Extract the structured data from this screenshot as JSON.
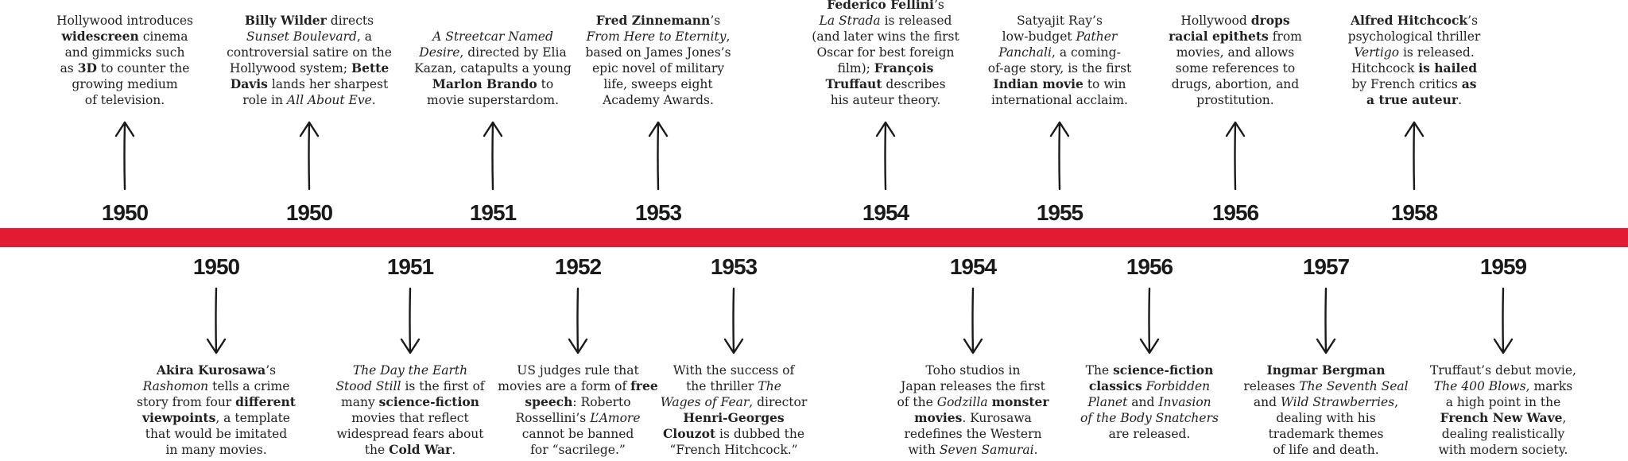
{
  "top_events": [
    {
      "year": "1950",
      "lines": [
        "Hollywood introduces",
        [
          {
            "b": "widescreen"
          },
          " cinema"
        ],
        "and gimmicks such",
        [
          "as ",
          {
            "b": "3D"
          },
          " to counter the"
        ],
        "growing medium",
        "of television."
      ]
    },
    {
      "year": "1950",
      "lines": [
        [
          {
            "b": "Billy Wilder"
          },
          " directs"
        ],
        [
          {
            "i": "Sunset Boulevard"
          },
          ", a"
        ],
        "controversial satire on the",
        [
          "Hollywood system; ",
          {
            "b": "Bette"
          }
        ],
        [
          {
            "b": "Davis"
          },
          " lands her sharpest"
        ],
        [
          "role in ",
          {
            "i": "All About Eve"
          },
          "."
        ]
      ]
    },
    {
      "year": "1951",
      "lines": [
        [
          {
            "i": "A Streetcar Named"
          }
        ],
        [
          {
            "i": "Desire"
          },
          ", directed by Elia"
        ],
        "Kazan, catapults a young",
        [
          {
            "b": "Marlon Brando"
          },
          " to"
        ],
        "movie superstardom."
      ]
    },
    {
      "year": "1953",
      "lines": [
        [
          {
            "b": "Fred Zinnemann"
          },
          "’s"
        ],
        [
          {
            "i": "From Here to Eternity"
          },
          ","
        ],
        "based on James Jones’s",
        "epic novel of military",
        "life, sweeps eight",
        "Academy Awards."
      ]
    },
    {
      "year": "1954",
      "lines": [
        [
          {
            "b": "Federico Fellini"
          },
          "’s"
        ],
        [
          {
            "i": "La Strada"
          },
          " is released"
        ],
        "(and later wins the first",
        "Oscar for best foreign",
        [
          "film); ",
          {
            "b": "François"
          }
        ],
        [
          {
            "b": "Truffaut"
          },
          " describes"
        ],
        "his auteur theory."
      ]
    },
    {
      "year": "1955",
      "lines": [
        "Satyajit Ray’s",
        [
          "low-budget ",
          {
            "i": "Pather"
          }
        ],
        [
          {
            "i": "Panchali"
          },
          ", a coming-"
        ],
        "of-age story, is the first",
        [
          {
            "b": "Indian movie"
          },
          " to win"
        ],
        "international acclaim."
      ]
    },
    {
      "year": "1956",
      "lines": [
        [
          "Hollywood ",
          {
            "b": "drops"
          }
        ],
        [
          {
            "b": "racial epithets"
          },
          " from"
        ],
        "movies, and allows",
        "some references to",
        "drugs, abortion, and",
        "prostitution."
      ]
    },
    {
      "year": "1958",
      "lines": [
        [
          {
            "b": "Alfred Hitchcock"
          },
          "’s"
        ],
        "psychological thriller",
        [
          {
            "i": "Vertigo"
          },
          " is released."
        ],
        [
          "Hitchcock ",
          {
            "b": "is hailed"
          }
        ],
        [
          "by French critics ",
          {
            "b": "as"
          }
        ],
        [
          {
            "b": "a true auteur"
          },
          "."
        ]
      ]
    }
  ],
  "bottom_events": [
    {
      "year": "1950",
      "lines": [
        [
          {
            "b": "Akira Kurosawa"
          },
          "’s"
        ],
        [
          {
            "i": "Rashomon"
          },
          " tells a crime"
        ],
        [
          "story from four ",
          {
            "b": "different"
          }
        ],
        [
          {
            "b": "viewpoints"
          },
          ", a template"
        ],
        "that would be imitated",
        "in many movies."
      ]
    },
    {
      "year": "1951",
      "lines": [
        [
          {
            "i": "The Day the Earth"
          }
        ],
        [
          {
            "i": "Stood Still"
          },
          " is the first of"
        ],
        [
          "many ",
          {
            "b": "science-fiction"
          }
        ],
        "movies that reflect",
        "widespread fears about",
        [
          "the ",
          {
            "b": "Cold War"
          },
          "."
        ]
      ]
    },
    {
      "year": "1952",
      "lines": [
        "US judges rule that",
        [
          "movies are a form of ",
          {
            "b": "free"
          }
        ],
        [
          {
            "b": "speech"
          },
          ": Roberto"
        ],
        [
          "Rossellini’s ",
          {
            "i": "L’Amore"
          }
        ],
        "cannot be banned",
        "for “sacrilege.”"
      ]
    },
    {
      "year": "1953",
      "lines": [
        "With the success of",
        [
          "the thriller ",
          {
            "i": "The"
          }
        ],
        [
          {
            "i": "Wages of Fear"
          },
          ", director"
        ],
        [
          {
            "b": "Henri-Georges"
          }
        ],
        [
          {
            "b": "Clouzot"
          },
          " is dubbed the"
        ],
        "“French Hitchcock.”"
      ]
    },
    {
      "year": "1954",
      "lines": [
        "Toho studios in",
        "Japan releases the first",
        [
          "of the ",
          {
            "i": "Godzilla"
          },
          " ",
          {
            "b": "monster"
          }
        ],
        [
          {
            "b": "movies"
          },
          ". Kurosawa"
        ],
        "redefines the Western",
        [
          "with ",
          {
            "i": "Seven Samurai"
          },
          "."
        ]
      ]
    },
    {
      "year": "1956",
      "lines": [
        [
          "The ",
          {
            "b": "science-fiction"
          }
        ],
        [
          {
            "b": "classics"
          },
          " ",
          {
            "i": "Forbidden"
          }
        ],
        [
          {
            "i": "Planet"
          },
          " and ",
          {
            "i": "Invasion"
          }
        ],
        [
          {
            "i": "of the Body Snatchers"
          }
        ],
        "are released."
      ]
    },
    {
      "year": "1957",
      "lines": [
        [
          {
            "b": "Ingmar Bergman"
          }
        ],
        [
          "releases ",
          {
            "i": "The Seventh Seal"
          }
        ],
        [
          "and ",
          {
            "i": "Wild Strawberries"
          },
          ","
        ],
        "dealing with his",
        "trademark themes",
        "of life and death."
      ]
    },
    {
      "year": "1959",
      "lines": [
        "Truffaut’s debut movie,",
        [
          {
            "i": "The 400 Blows"
          },
          ", marks"
        ],
        "a high point in the",
        [
          {
            "b": "French New Wave"
          },
          ","
        ],
        "dealing realistically",
        "with modern society."
      ]
    }
  ]
}
